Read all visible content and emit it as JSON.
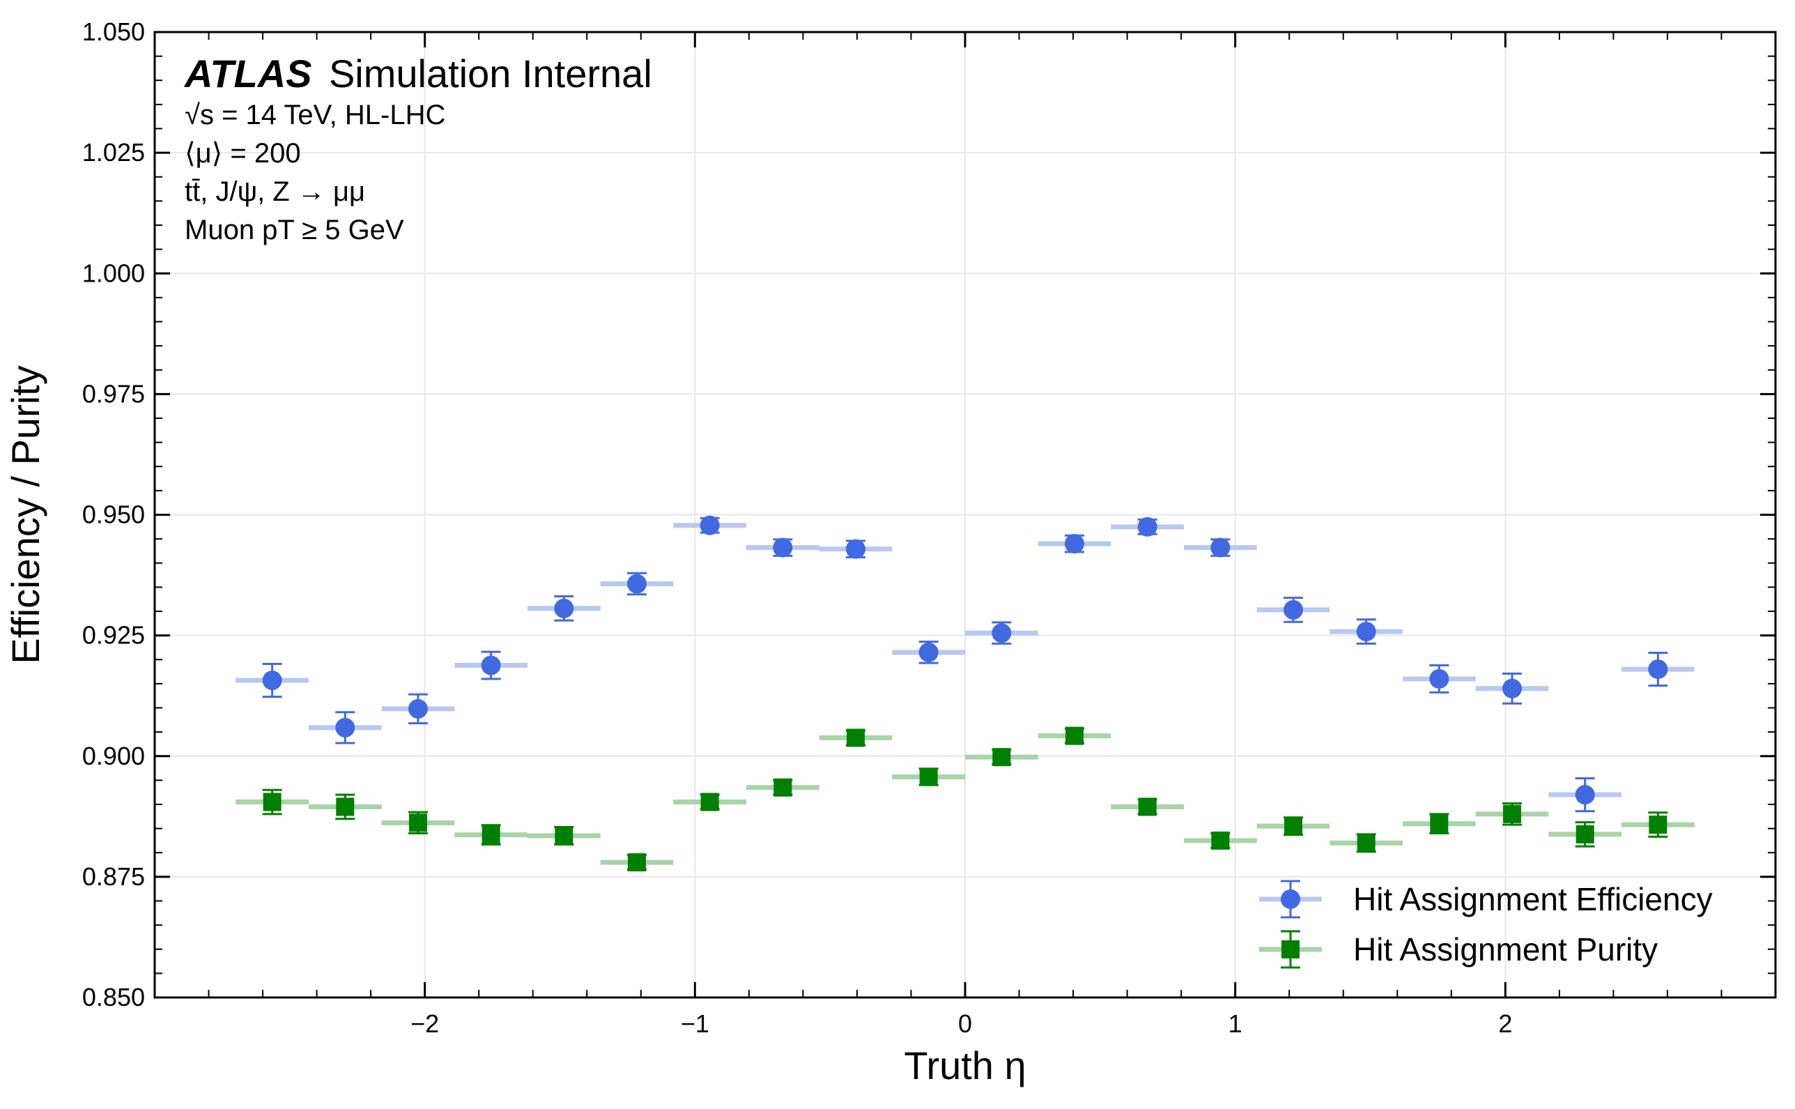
{
  "chart_data": {
    "type": "scatter",
    "xlabel": "Truth η",
    "ylabel": "Efficiency / Purity",
    "xlim": [
      -3.0,
      3.0
    ],
    "ylim": [
      0.85,
      1.05
    ],
    "x_ticks": [
      -2,
      -1,
      0,
      1,
      2
    ],
    "x_tick_labels": [
      "−2",
      "−1",
      "0",
      "1",
      "2"
    ],
    "y_ticks": [
      0.85,
      0.875,
      0.9,
      0.925,
      0.95,
      0.975,
      1.0,
      1.025,
      1.05
    ],
    "y_tick_labels": [
      "0.850",
      "0.875",
      "0.900",
      "0.925",
      "0.950",
      "0.975",
      "1.000",
      "1.025",
      "1.050"
    ],
    "grid": true,
    "legend_position": "bottom-right",
    "annotations": {
      "atlas": "ATLAS",
      "label": "Simulation Internal",
      "lines": [
        "√s = 14 TeV, HL-LHC",
        "⟨μ⟩ = 200",
        "tt̄, J/ψ, Z → μμ",
        "Muon pT ≥ 5 GeV"
      ]
    },
    "x": [
      -2.565,
      -2.295,
      -2.025,
      -1.755,
      -1.485,
      -1.215,
      -0.945,
      -0.675,
      -0.405,
      -0.135,
      0.135,
      0.405,
      0.675,
      0.945,
      1.215,
      1.485,
      1.755,
      2.025,
      2.295,
      2.565
    ],
    "bin_half_width": 0.135,
    "series": [
      {
        "name": "Hit Assignment Efficiency",
        "marker": "circle",
        "color": "#4169e1",
        "bin_color": "#b8c8f0",
        "values": [
          0.9157,
          0.9059,
          0.9098,
          0.9188,
          0.9306,
          0.9357,
          0.9478,
          0.9432,
          0.9429,
          0.9215,
          0.9255,
          0.944,
          0.9475,
          0.9432,
          0.9303,
          0.9258,
          0.916,
          0.914,
          0.892,
          0.918
        ],
        "errors": [
          0.0034,
          0.0032,
          0.003,
          0.0028,
          0.0025,
          0.0022,
          0.0015,
          0.0017,
          0.0017,
          0.0022,
          0.0022,
          0.0017,
          0.0015,
          0.0017,
          0.0025,
          0.0025,
          0.0028,
          0.0031,
          0.0034,
          0.0034
        ]
      },
      {
        "name": "Hit Assignment Purity",
        "marker": "square",
        "color": "#008000",
        "bin_color": "#a8d4a8",
        "values": [
          0.8905,
          0.8895,
          0.8862,
          0.8837,
          0.8835,
          0.878,
          0.8905,
          0.8935,
          0.9038,
          0.8957,
          0.8998,
          0.9042,
          0.8895,
          0.8825,
          0.8855,
          0.882,
          0.886,
          0.888,
          0.8838,
          0.8858
        ],
        "errors": [
          0.0025,
          0.0025,
          0.0022,
          0.002,
          0.0018,
          0.0015,
          0.0015,
          0.0015,
          0.0015,
          0.0017,
          0.0015,
          0.0015,
          0.0015,
          0.0015,
          0.0018,
          0.0018,
          0.002,
          0.0022,
          0.0025,
          0.0025
        ]
      }
    ]
  }
}
